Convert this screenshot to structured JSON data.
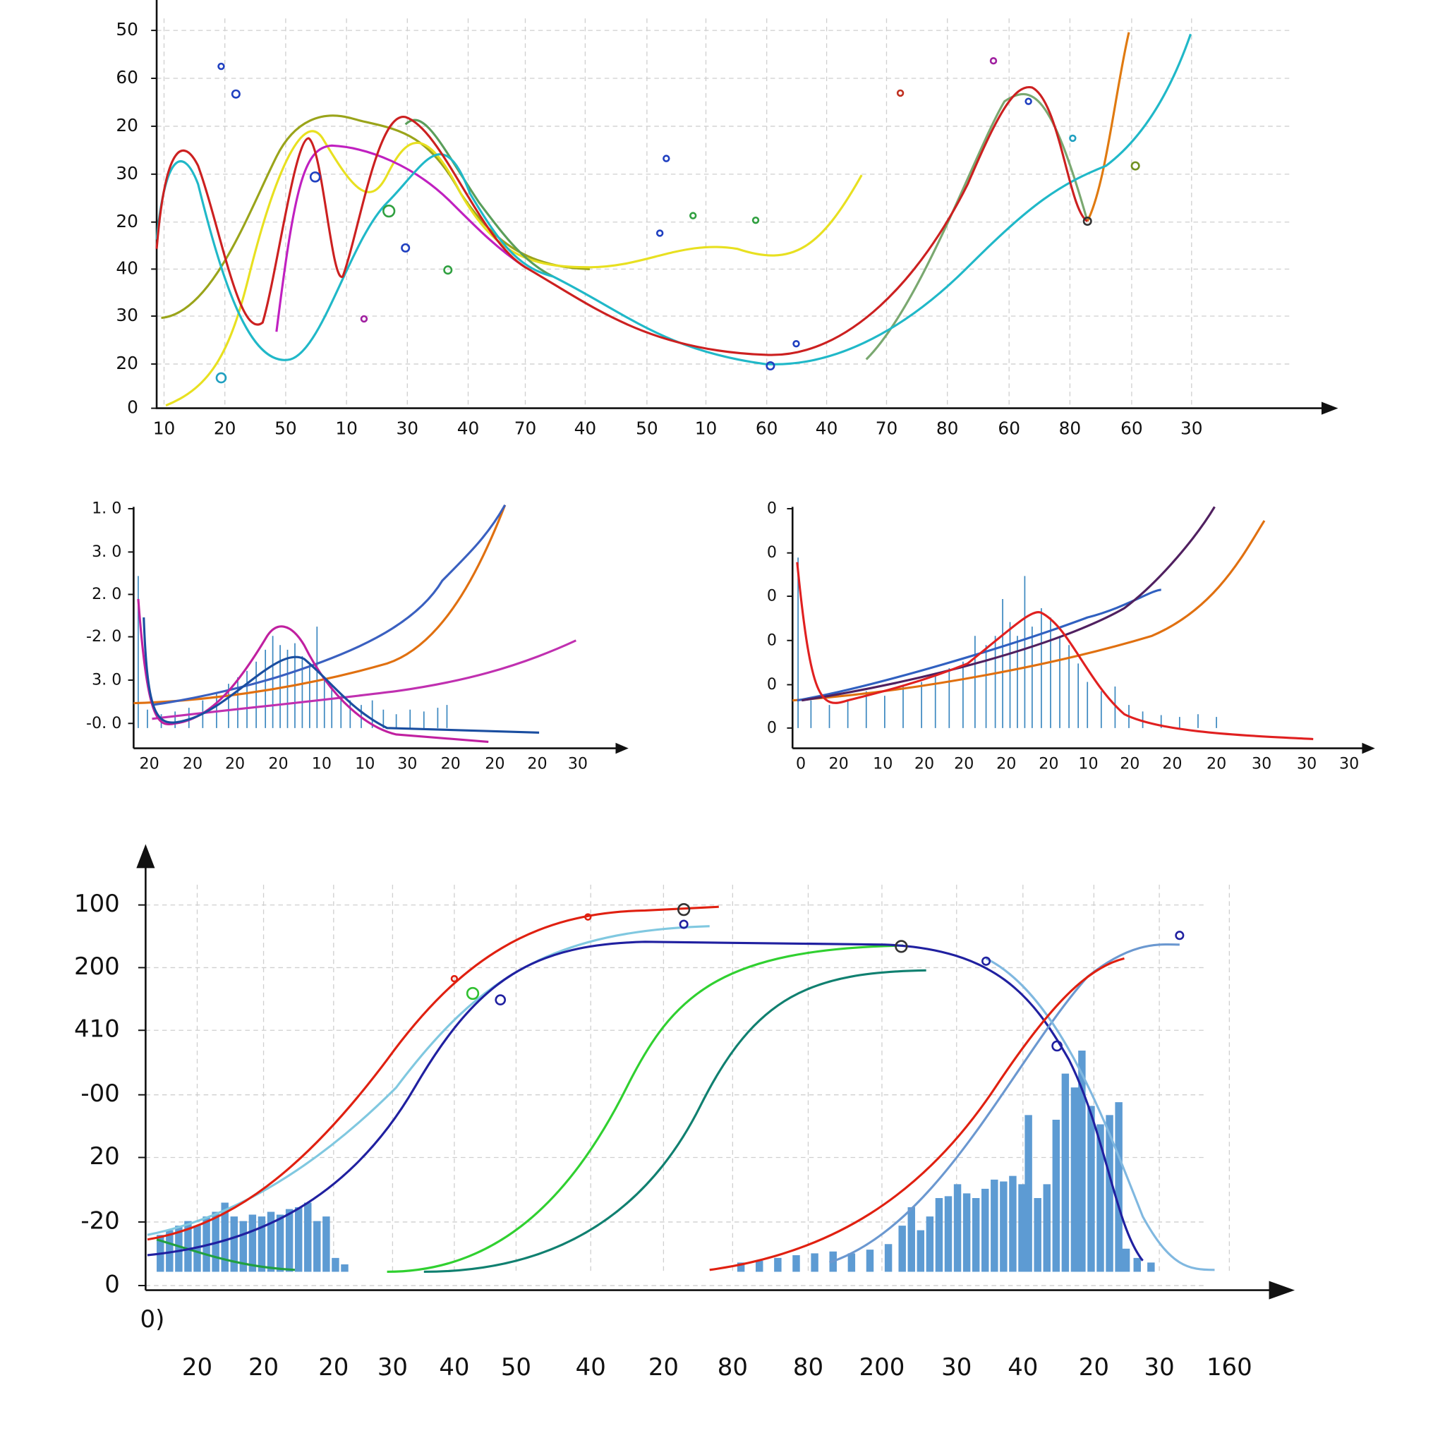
{
  "panels": [
    {
      "y_labels": [
        "50",
        "60",
        "20",
        "30",
        "20",
        "40",
        "30",
        "20",
        "0"
      ],
      "x_labels": [
        "10",
        "20",
        "50",
        "10",
        "30",
        "40",
        "70",
        "40",
        "50",
        "10",
        "60",
        "40",
        "70",
        "80",
        "60",
        "80",
        "60",
        "30"
      ]
    },
    {
      "y_labels": [
        "1. 0",
        "3. 0",
        "2. 0",
        "-2. 0",
        "3. 0",
        "-0. 0"
      ],
      "x_labels": [
        "20",
        "20",
        "20",
        "20",
        "10",
        "10",
        "30",
        "20",
        "20",
        "20",
        "30"
      ]
    },
    {
      "y_labels": [
        "0",
        "0",
        "0",
        "0",
        "0",
        "0"
      ],
      "x_labels": [
        "0",
        "20",
        "10",
        "20",
        "20",
        "20",
        "20",
        "10",
        "20",
        "20",
        "20",
        "30",
        "30",
        "30"
      ]
    },
    {
      "y_labels": [
        "100",
        "200",
        "410",
        "-00",
        "20",
        "-20",
        "0"
      ],
      "x_labels": [
        "20",
        "20",
        "20",
        "30",
        "40",
        "50",
        "40",
        "20",
        "80",
        "80",
        "200",
        "30",
        "40",
        "20",
        "30",
        "160"
      ],
      "corner_label": "0)"
    }
  ]
}
